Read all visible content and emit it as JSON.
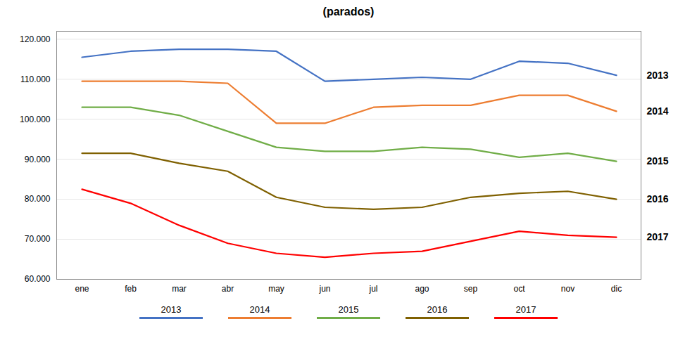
{
  "chart_data": {
    "type": "line",
    "title": "(parados)",
    "categories": [
      "ene",
      "feb",
      "mar",
      "abr",
      "may",
      "jun",
      "jul",
      "ago",
      "sep",
      "oct",
      "nov",
      "dic"
    ],
    "series": [
      {
        "name": "2013",
        "color": "#4472C4",
        "values": [
          115500,
          117000,
          117500,
          117500,
          117000,
          109500,
          110000,
          110500,
          110000,
          114500,
          114000,
          111000
        ]
      },
      {
        "name": "2014",
        "color": "#ED7D31",
        "values": [
          109500,
          109500,
          109500,
          109000,
          99000,
          99000,
          103000,
          103500,
          103500,
          106000,
          106000,
          102000
        ]
      },
      {
        "name": "2015",
        "color": "#70AD47",
        "values": [
          103000,
          103000,
          101000,
          97000,
          93000,
          92000,
          92000,
          93000,
          92500,
          90500,
          91500,
          89500
        ]
      },
      {
        "name": "2016",
        "color": "#7F6000",
        "values": [
          91500,
          91500,
          89000,
          87000,
          80500,
          78000,
          77500,
          78000,
          80500,
          81500,
          82000,
          80000
        ]
      },
      {
        "name": "2017",
        "color": "#FF0000",
        "values": [
          82500,
          79000,
          73500,
          69000,
          66500,
          65500,
          66500,
          67000,
          69500,
          72000,
          71000,
          70500
        ]
      }
    ],
    "ylim": [
      60000,
      122000
    ],
    "yticks": [
      {
        "value": 60000,
        "label": "60.000"
      },
      {
        "value": 70000,
        "label": "70.000"
      },
      {
        "value": 80000,
        "label": "80.000"
      },
      {
        "value": 90000,
        "label": "90.000"
      },
      {
        "value": 100000,
        "label": "100.000"
      },
      {
        "value": 110000,
        "label": "110.000"
      },
      {
        "value": 120000,
        "label": "120.000"
      }
    ],
    "annotations": [
      {
        "text": "2013",
        "y": 111000
      },
      {
        "text": "2014",
        "y": 102000
      },
      {
        "text": "2015",
        "y": 89500
      },
      {
        "text": "2016",
        "y": 80000
      },
      {
        "text": "2017",
        "y": 70500
      }
    ],
    "grid": true,
    "legend": "bottom"
  }
}
